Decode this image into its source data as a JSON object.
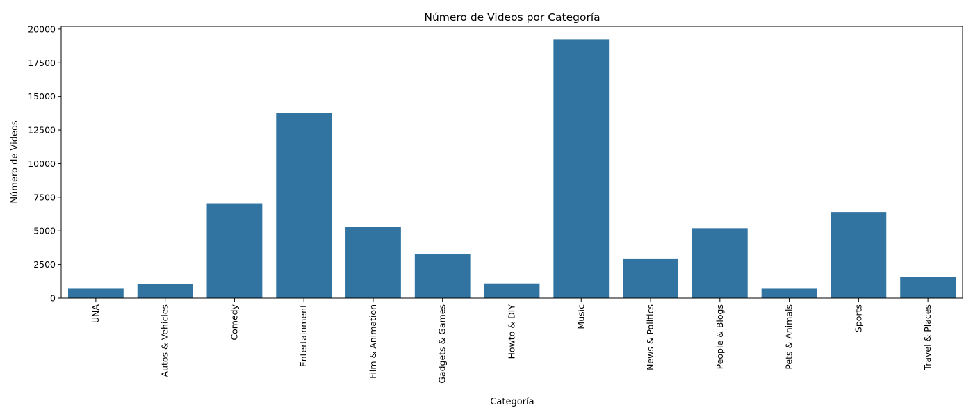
{
  "chart_data": {
    "type": "bar",
    "title": "Número de Videos por Categoría",
    "xlabel": "Categoría",
    "ylabel": "Número de Videos",
    "categories": [
      "UNA",
      "Autos & Vehicles",
      "Comedy",
      "Entertainment",
      "Film & Animation",
      "Gadgets & Games",
      "Howto & DIY",
      "Music",
      "News & Politics",
      "People & Blogs",
      "Pets & Animals",
      "Sports",
      "Travel & Places"
    ],
    "values": [
      700,
      1050,
      7050,
      13750,
      5300,
      3300,
      1100,
      19250,
      2950,
      5200,
      700,
      6400,
      1550
    ],
    "ylim": [
      0,
      20200
    ],
    "yticks": [
      0,
      2500,
      5000,
      7500,
      10000,
      12500,
      15000,
      17500,
      20000
    ],
    "ytick_labels": [
      "0",
      "2500",
      "5000",
      "7500",
      "10000",
      "12500",
      "15000",
      "17500",
      "20000"
    ],
    "bar_color": "#3274a1",
    "grid": false,
    "legend": "none"
  }
}
